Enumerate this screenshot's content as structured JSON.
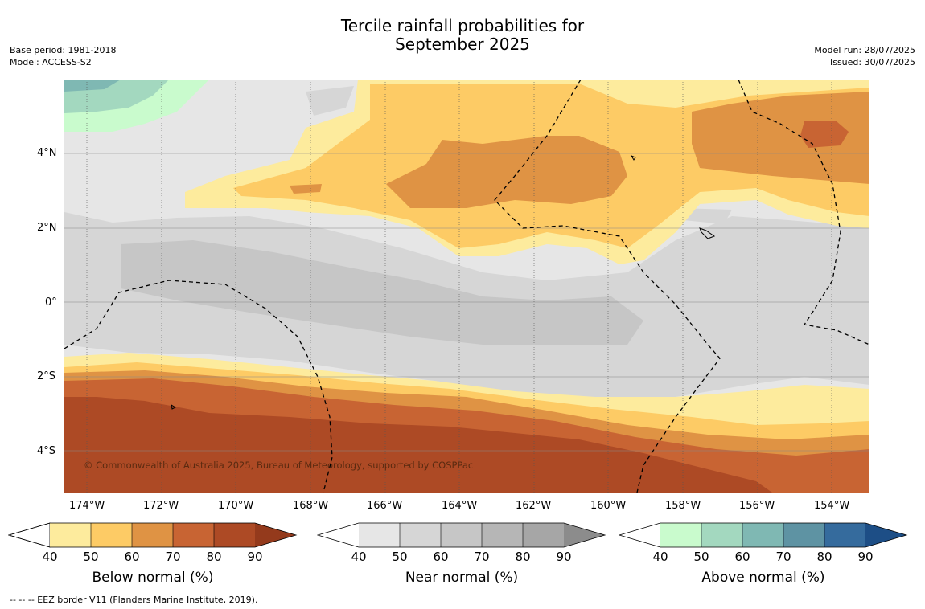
{
  "header": {
    "title_line1": "Tercile rainfall probabilities for",
    "title_line2": "September 2025",
    "base_period": "Base period: 1981-2018",
    "model": "Model: ACCESS-S2",
    "model_run": "Model run: 28/07/2025",
    "issued": "Issued: 30/07/2025"
  },
  "map": {
    "lat_labels": [
      "4°N",
      "2°N",
      "0°",
      "2°S",
      "4°S"
    ],
    "lon_labels": [
      "174°W",
      "172°W",
      "170°W",
      "168°W",
      "166°W",
      "164°W",
      "162°W",
      "160°W",
      "158°W",
      "156°W",
      "154°W"
    ],
    "copyright": "© Commonwealth of Australia 2025, Bureau of Meteorology, supported by COSPPac"
  },
  "colorbars": [
    {
      "title": "Below normal (%)",
      "ticks": [
        "40",
        "50",
        "60",
        "70",
        "80",
        "90"
      ],
      "colors": [
        "#fdeb9d",
        "#fdcb65",
        "#df9344",
        "#c86433",
        "#ad4a25",
        "#943a1c"
      ]
    },
    {
      "title": "Near normal (%)",
      "ticks": [
        "40",
        "50",
        "60",
        "70",
        "80",
        "90"
      ],
      "colors": [
        "#e6e6e6",
        "#d6d6d6",
        "#c6c6c6",
        "#b6b6b6",
        "#a6a6a6",
        "#8c8c8c"
      ]
    },
    {
      "title": "Above normal (%)",
      "ticks": [
        "40",
        "50",
        "60",
        "70",
        "80",
        "90"
      ],
      "colors": [
        "#c9fbcd",
        "#a3d8bf",
        "#7fb8b3",
        "#5e93a3",
        "#356b9d",
        "#1d4e86"
      ]
    }
  ],
  "footer": {
    "legend_line": "--  --  -- EEZ border V11 (Flanders Marine Institute, 2019)."
  }
}
